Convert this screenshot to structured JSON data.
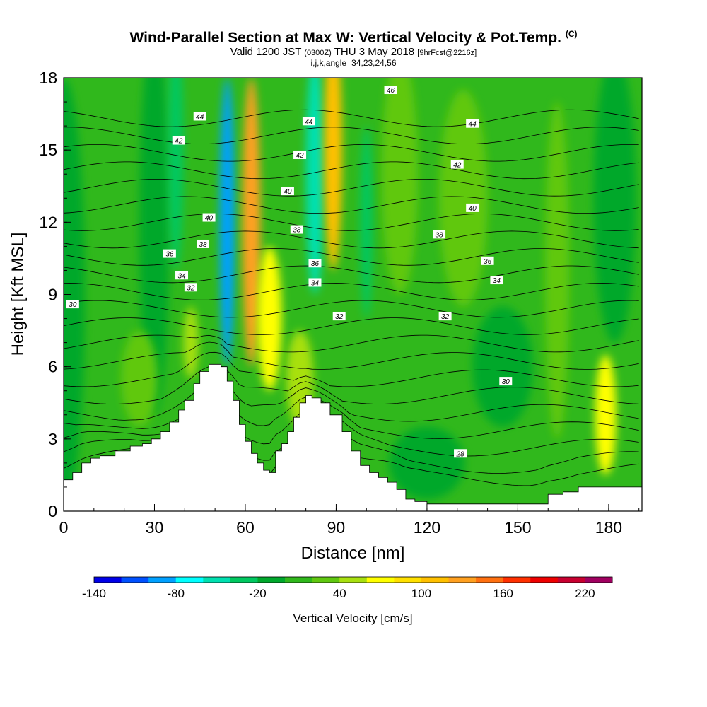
{
  "title": {
    "main": "Wind-Parallel Section at Max W: Vertical Velocity & Pot.Temp.",
    "main_mark": "(C)",
    "valid_prefix": "Valid 1200 JST",
    "valid_utc": "(0300Z)",
    "valid_date": "THU 3 May 2018",
    "fcst": "[9hrFcst@2216z]",
    "indices": "i,j,k,angle=34,23,24,56"
  },
  "chart_data": {
    "type": "heatmap",
    "xlabel": "Distance [nm]",
    "ylabel": "Height [Kft MSL]",
    "xlim": [
      0,
      191
    ],
    "ylim": [
      0,
      18
    ],
    "x_ticks": [
      0,
      30,
      60,
      90,
      120,
      150,
      180
    ],
    "y_ticks": [
      0,
      3,
      6,
      9,
      12,
      15,
      18
    ],
    "x_tick_labels": [
      "0",
      "30",
      "60",
      "90",
      "120",
      "150",
      "180"
    ],
    "y_tick_labels": [
      "0",
      "3",
      "6",
      "9",
      "12",
      "15",
      "18"
    ],
    "colorbar": {
      "label": "Vertical Velocity [cm/s]",
      "min": -140,
      "max": 240,
      "step": 20,
      "tick_values": [
        -140,
        -80,
        -20,
        40,
        100,
        160,
        220
      ],
      "tick_labels": [
        "-140",
        "-80",
        "-20",
        "40",
        "100",
        "160",
        "220"
      ],
      "colors": [
        "#0000e8",
        "#0050ff",
        "#00a0ff",
        "#00ffff",
        "#00e0b0",
        "#00c860",
        "#00a82c",
        "#30b81c",
        "#60c810",
        "#a8e010",
        "#ffff00",
        "#ffe000",
        "#ffc000",
        "#ffa020",
        "#ff7010",
        "#ff3000",
        "#ee0000",
        "#c80030",
        "#a00060"
      ]
    },
    "terrain_profile": {
      "x": [
        0,
        3,
        6,
        9,
        12,
        17,
        22,
        26,
        29,
        32,
        35,
        38,
        40,
        43,
        45,
        48,
        50,
        52,
        54,
        56,
        58,
        60,
        62,
        64,
        66,
        68,
        70,
        72,
        74,
        76,
        78,
        80,
        82,
        85,
        88,
        92,
        95,
        98,
        101,
        104,
        107,
        110,
        113,
        116,
        120,
        124,
        128,
        132,
        136,
        140,
        145,
        150,
        155,
        160,
        165,
        170,
        175,
        180,
        185,
        191
      ],
      "y": [
        1.3,
        1.6,
        2.0,
        2.2,
        2.3,
        2.5,
        2.7,
        2.8,
        3.0,
        3.3,
        3.7,
        4.2,
        4.6,
        5.3,
        5.8,
        6.1,
        6.1,
        6.0,
        5.4,
        4.6,
        3.6,
        2.9,
        2.4,
        2.0,
        1.7,
        1.6,
        2.5,
        2.8,
        3.3,
        3.9,
        4.5,
        4.8,
        4.7,
        4.5,
        4.0,
        3.3,
        2.5,
        1.9,
        1.6,
        1.4,
        1.2,
        0.9,
        0.5,
        0.4,
        0.3,
        0.3,
        0.3,
        0.3,
        0.3,
        0.3,
        0.3,
        0.3,
        0.3,
        0.7,
        0.8,
        1.0,
        1.0,
        1.0,
        1.0,
        1.0
      ]
    },
    "w_features": [
      {
        "x": 0,
        "y": 9,
        "w": 14,
        "h": 18,
        "value": -20
      },
      {
        "x": 30,
        "y": 12,
        "w": 10,
        "h": 16,
        "value": -20
      },
      {
        "x": 37,
        "y": 15,
        "w": 5,
        "h": 10,
        "value": -40
      },
      {
        "x": 25,
        "y": 5.5,
        "w": 12,
        "h": 4,
        "value": 20
      },
      {
        "x": 42,
        "y": 7,
        "w": 5,
        "h": 3,
        "value": 40
      },
      {
        "x": 54,
        "y": 12,
        "w": 5,
        "h": 12,
        "value": -100
      },
      {
        "x": 62,
        "y": 12,
        "w": 6,
        "h": 12,
        "value": 120
      },
      {
        "x": 68,
        "y": 8,
        "w": 8,
        "h": 6,
        "value": 60
      },
      {
        "x": 78,
        "y": 5.5,
        "w": 9,
        "h": 4,
        "value": 40
      },
      {
        "x": 83,
        "y": 14,
        "w": 6,
        "h": 10,
        "value": -60
      },
      {
        "x": 89,
        "y": 15,
        "w": 6,
        "h": 10,
        "value": 100
      },
      {
        "x": 100,
        "y": 12,
        "w": 4,
        "h": 8,
        "value": -40
      },
      {
        "x": 111,
        "y": 14,
        "w": 12,
        "h": 10,
        "value": 20
      },
      {
        "x": 132,
        "y": 13,
        "w": 16,
        "h": 9,
        "value": 20
      },
      {
        "x": 145,
        "y": 6,
        "w": 20,
        "h": 5,
        "value": -20
      },
      {
        "x": 120,
        "y": 2,
        "w": 25,
        "h": 3,
        "value": -20
      },
      {
        "x": 179,
        "y": 4,
        "w": 7,
        "h": 5,
        "value": 60
      },
      {
        "x": 182,
        "y": 13,
        "w": 14,
        "h": 12,
        "value": -20
      },
      {
        "x": 163,
        "y": 10,
        "w": 8,
        "h": 14,
        "value": 20
      }
    ],
    "theta_contours": {
      "levels": [
        27,
        28,
        29,
        30,
        31,
        32,
        33,
        34,
        35,
        36,
        37,
        38,
        39,
        40,
        41,
        42,
        43,
        44,
        45,
        46,
        47,
        48
      ],
      "labeled": [
        {
          "text": "30",
          "x": 3,
          "y": 8.6
        },
        {
          "text": "32",
          "x": 42,
          "y": 9.3
        },
        {
          "text": "34",
          "x": 39,
          "y": 9.8
        },
        {
          "text": "36",
          "x": 35,
          "y": 10.7
        },
        {
          "text": "38",
          "x": 46,
          "y": 11.1
        },
        {
          "text": "40",
          "x": 48,
          "y": 12.2
        },
        {
          "text": "42",
          "x": 38,
          "y": 15.4
        },
        {
          "text": "44",
          "x": 45,
          "y": 16.4
        },
        {
          "text": "44",
          "x": 81,
          "y": 16.2
        },
        {
          "text": "42",
          "x": 78,
          "y": 14.8
        },
        {
          "text": "40",
          "x": 74,
          "y": 13.3
        },
        {
          "text": "38",
          "x": 77,
          "y": 11.7
        },
        {
          "text": "36",
          "x": 83,
          "y": 10.3
        },
        {
          "text": "34",
          "x": 83,
          "y": 9.5
        },
        {
          "text": "32",
          "x": 91,
          "y": 8.1
        },
        {
          "text": "46",
          "x": 108,
          "y": 17.5
        },
        {
          "text": "44",
          "x": 135,
          "y": 16.1
        },
        {
          "text": "42",
          "x": 130,
          "y": 14.4
        },
        {
          "text": "40",
          "x": 135,
          "y": 12.6
        },
        {
          "text": "38",
          "x": 124,
          "y": 11.5
        },
        {
          "text": "36",
          "x": 140,
          "y": 10.4
        },
        {
          "text": "34",
          "x": 143,
          "y": 9.6
        },
        {
          "text": "32",
          "x": 126,
          "y": 8.1
        },
        {
          "text": "30",
          "x": 146,
          "y": 5.4
        },
        {
          "text": "28",
          "x": 131,
          "y": 2.4
        }
      ]
    }
  }
}
